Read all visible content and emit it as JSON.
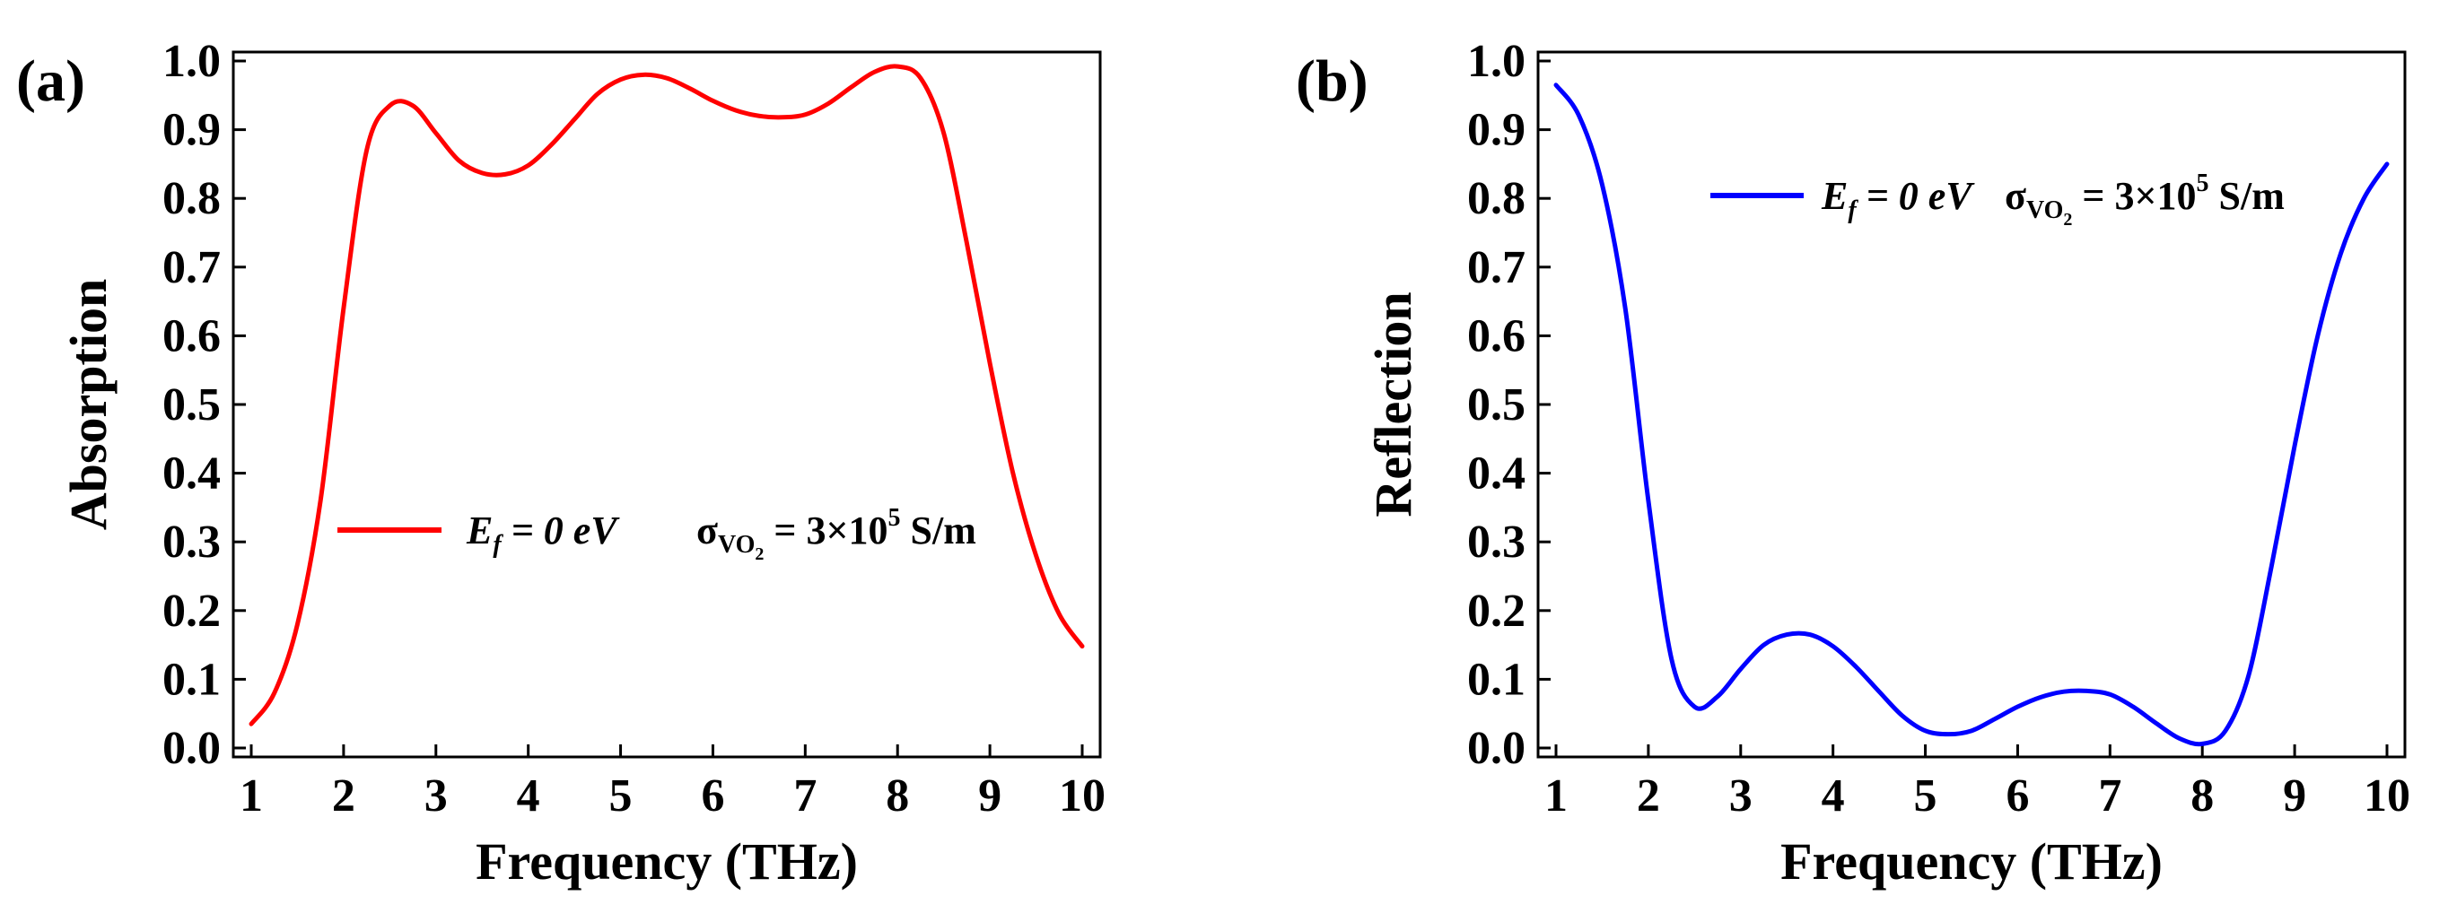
{
  "chart_data": [
    {
      "panel_label": "(a)",
      "type": "line",
      "xlabel": "Frequency (THz)",
      "ylabel": "Absorption",
      "xlim": [
        1,
        10
      ],
      "ylim": [
        0.0,
        1.0
      ],
      "x_ticks": [
        1,
        2,
        3,
        4,
        5,
        6,
        7,
        8,
        9,
        10
      ],
      "y_ticks": [
        0.0,
        0.1,
        0.2,
        0.3,
        0.4,
        0.5,
        0.6,
        0.7,
        0.8,
        0.9,
        1.0
      ],
      "x_tick_labels": [
        "1",
        "2",
        "3",
        "4",
        "5",
        "6",
        "7",
        "8",
        "9",
        "10"
      ],
      "y_tick_labels": [
        "0.0",
        "0.1",
        "0.2",
        "0.3",
        "0.4",
        "0.5",
        "0.6",
        "0.7",
        "0.8",
        "0.9",
        "1.0"
      ],
      "legend_placement": "middle-center",
      "legend": {
        "ef_symbol": "E",
        "ef_sub": "f",
        "ef_value": " = 0 eV",
        "sigma_symbol": "σ",
        "sigma_sub": "VO",
        "sigma_subsub": "2",
        "sigma_value": " = 3×10",
        "sigma_exp": "5",
        "sigma_unit": " S/m"
      },
      "series": [
        {
          "name": "Ef = 0 eV, σVO2 = 3×10^5 S/m",
          "color": "#ff0000",
          "x": [
            1.0,
            1.25,
            1.5,
            1.75,
            2.0,
            2.25,
            2.5,
            2.75,
            3.0,
            3.25,
            3.5,
            3.75,
            4.0,
            4.25,
            4.5,
            4.75,
            5.0,
            5.25,
            5.5,
            5.75,
            6.0,
            6.25,
            6.5,
            6.75,
            7.0,
            7.25,
            7.5,
            7.75,
            8.0,
            8.25,
            8.5,
            8.75,
            9.0,
            9.25,
            9.5,
            9.75,
            10.0
          ],
          "y": [
            0.035,
            0.08,
            0.18,
            0.36,
            0.64,
            0.87,
            0.935,
            0.935,
            0.895,
            0.855,
            0.837,
            0.835,
            0.848,
            0.878,
            0.915,
            0.952,
            0.973,
            0.98,
            0.975,
            0.96,
            0.942,
            0.928,
            0.92,
            0.918,
            0.922,
            0.938,
            0.962,
            0.984,
            0.992,
            0.975,
            0.895,
            0.735,
            0.56,
            0.4,
            0.28,
            0.195,
            0.148
          ]
        }
      ]
    },
    {
      "panel_label": "(b)",
      "type": "line",
      "xlabel": "Frequency (THz)",
      "ylabel": "Reflection",
      "xlim": [
        1,
        10
      ],
      "ylim": [
        0.0,
        1.0
      ],
      "x_ticks": [
        1,
        2,
        3,
        4,
        5,
        6,
        7,
        8,
        9,
        10
      ],
      "y_ticks": [
        0.0,
        0.1,
        0.2,
        0.3,
        0.4,
        0.5,
        0.6,
        0.7,
        0.8,
        0.9,
        1.0
      ],
      "x_tick_labels": [
        "1",
        "2",
        "3",
        "4",
        "5",
        "6",
        "7",
        "8",
        "9",
        "10"
      ],
      "y_tick_labels": [
        "0.0",
        "0.1",
        "0.2",
        "0.3",
        "0.4",
        "0.5",
        "0.6",
        "0.7",
        "0.8",
        "0.9",
        "1.0"
      ],
      "legend_placement": "top-right",
      "legend": {
        "ef_symbol": "E",
        "ef_sub": "f",
        "ef_value": " = 0 eV",
        "sigma_symbol": "σ",
        "sigma_sub": "VO",
        "sigma_subsub": "2",
        "sigma_value": " = 3×10",
        "sigma_exp": "5",
        "sigma_unit": " S/m"
      },
      "series": [
        {
          "name": "Ef = 0 eV, σVO2 = 3×10^5 S/m",
          "color": "#0000ff",
          "x": [
            1.0,
            1.25,
            1.5,
            1.75,
            2.0,
            2.25,
            2.5,
            2.75,
            3.0,
            3.25,
            3.5,
            3.75,
            4.0,
            4.25,
            4.5,
            4.75,
            5.0,
            5.25,
            5.5,
            5.75,
            6.0,
            6.25,
            6.5,
            6.75,
            7.0,
            7.25,
            7.5,
            7.75,
            8.0,
            8.25,
            8.5,
            8.75,
            9.0,
            9.25,
            9.5,
            9.75,
            10.0
          ],
          "y": [
            0.965,
            0.92,
            0.82,
            0.64,
            0.36,
            0.13,
            0.06,
            0.075,
            0.115,
            0.15,
            0.165,
            0.165,
            0.148,
            0.118,
            0.082,
            0.047,
            0.025,
            0.02,
            0.025,
            0.042,
            0.06,
            0.074,
            0.082,
            0.083,
            0.078,
            0.06,
            0.036,
            0.014,
            0.006,
            0.025,
            0.105,
            0.265,
            0.44,
            0.6,
            0.72,
            0.8,
            0.85
          ]
        }
      ]
    }
  ]
}
